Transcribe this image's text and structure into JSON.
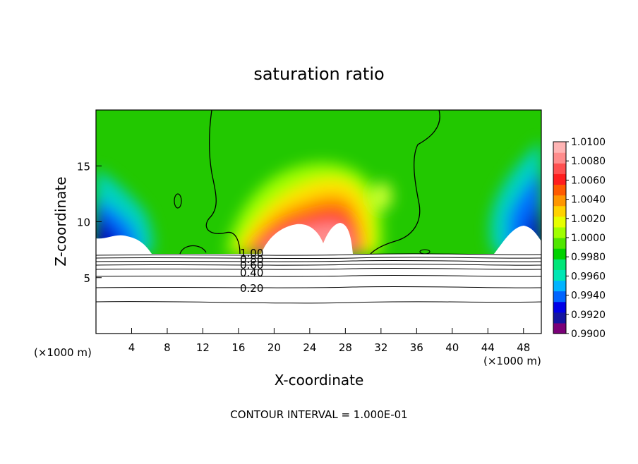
{
  "chart_data": {
    "type": "heatmap",
    "title": "saturation ratio",
    "xlabel": "X-coordinate",
    "ylabel": "Z-coordinate",
    "x_units": "(×1000 m)",
    "z_units": "(×1000 m)",
    "xlim": [
      0,
      50
    ],
    "ylim": [
      0,
      20
    ],
    "x_ticks": [
      4,
      8,
      12,
      16,
      20,
      24,
      28,
      32,
      36,
      40,
      44,
      48
    ],
    "y_ticks": [
      5,
      10,
      15
    ],
    "colorbar": {
      "labels": [
        "1.0100",
        "1.0080",
        "1.0060",
        "1.0040",
        "1.0020",
        "1.0000",
        "0.9980",
        "0.9960",
        "0.9940",
        "0.9920",
        "0.9900"
      ],
      "min": 0.99,
      "max": 1.01
    },
    "contour_labels": [
      "1.00",
      "0.80",
      "0.60",
      "0.40",
      "0.20"
    ],
    "footer": "CONTOUR INTERVAL =  1.000E-01"
  }
}
